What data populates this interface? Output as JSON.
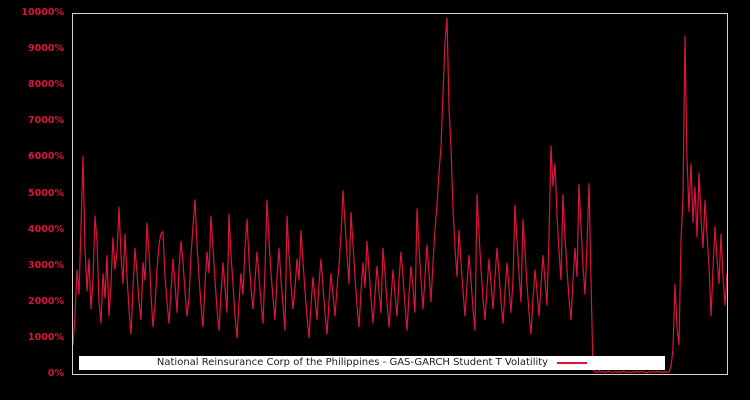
{
  "chart_data": {
    "type": "line",
    "title": "",
    "xlabel": "",
    "ylabel": "",
    "legend_label": "National Reinsurance Corp of the Philippines - GAS-GARCH Student T Volatility",
    "legend_position": "lower center",
    "grid": false,
    "ylim": [
      0,
      10000
    ],
    "ytick_values": [
      0,
      1000,
      2000,
      3000,
      4000,
      5000,
      6000,
      7000,
      8000,
      9000,
      10000
    ],
    "yticks": [
      "0%",
      "1000%",
      "2000%",
      "3000%",
      "4000%",
      "5000%",
      "6000%",
      "7000%",
      "8000%",
      "9000%",
      "10000%"
    ],
    "xticks": [],
    "colors": {
      "background": "#000000",
      "line": "#dc143c",
      "axis_border": "#d4d4d4",
      "tick_label": "#dc143c",
      "legend_background": "#ffffff",
      "legend_text": "#1a1a1a"
    },
    "series": [
      {
        "name": "National Reinsurance Corp of the Philippines - GAS-GARCH Student T Volatility",
        "unit": "percent",
        "values": [
          800,
          1600,
          2900,
          2200,
          4100,
          6050,
          3500,
          2300,
          3200,
          1800,
          2600,
          4400,
          3700,
          2000,
          1400,
          2800,
          2100,
          3300,
          1600,
          2500,
          3800,
          2900,
          3400,
          4650,
          3300,
          2500,
          3900,
          2700,
          1800,
          1100,
          2400,
          3500,
          2800,
          2000,
          1500,
          3100,
          2600,
          4200,
          3400,
          2200,
          1300,
          1900,
          2900,
          3600,
          3900,
          3950,
          2700,
          2000,
          1400,
          2300,
          3200,
          2500,
          1700,
          2900,
          3700,
          3100,
          2300,
          1600,
          2100,
          3300,
          4100,
          4850,
          3600,
          2700,
          1900,
          1300,
          2500,
          3400,
          2800,
          4400,
          3500,
          2600,
          1800,
          1200,
          2200,
          3100,
          2400,
          1700,
          4450,
          3300,
          2500,
          1600,
          1000,
          2000,
          2800,
          2200,
          3500,
          4300,
          3200,
          2400,
          1800,
          2600,
          3400,
          2700,
          2000,
          1400,
          2900,
          4830,
          3700,
          2800,
          2100,
          1500,
          2700,
          3500,
          2600,
          1900,
          1200,
          4400,
          3300,
          2500,
          1800,
          2400,
          3200,
          2600,
          4000,
          3100,
          2300,
          1600,
          1000,
          1900,
          2700,
          2100,
          1500,
          2500,
          3200,
          2400,
          1700,
          1100,
          2000,
          2800,
          2200,
          1600,
          2400,
          3000,
          3900,
          5100,
          4200,
          3300,
          2500,
          4500,
          3600,
          2700,
          1900,
          1300,
          2300,
          3100,
          2400,
          3700,
          2900,
          2100,
          1400,
          2200,
          3000,
          2300,
          1700,
          3500,
          2800,
          2000,
          1300,
          2100,
          2900,
          2200,
          1600,
          2600,
          3400,
          2700,
          1900,
          1200,
          2200,
          3000,
          2400,
          1700,
          4600,
          3500,
          2600,
          1800,
          2700,
          3600,
          2800,
          2000,
          3100,
          4000,
          4700,
          5600,
          6300,
          7800,
          9200,
          9900,
          7400,
          6300,
          4600,
          3500,
          2700,
          4000,
          3100,
          2300,
          1600,
          2500,
          3300,
          2600,
          1800,
          1200,
          5000,
          3900,
          2900,
          2100,
          1500,
          2400,
          3200,
          2500,
          1800,
          2700,
          3500,
          2800,
          2000,
          1400,
          2300,
          3100,
          2400,
          1700,
          2600,
          4700,
          3700,
          2800,
          2000,
          4300,
          3400,
          2500,
          1700,
          1100,
          2100,
          2900,
          2300,
          1600,
          2500,
          3300,
          2600,
          1900,
          3800,
          6350,
          5200,
          5850,
          4400,
          3400,
          2600,
          5000,
          3800,
          2900,
          2100,
          1500,
          2600,
          3500,
          2700,
          5280,
          4100,
          3000,
          2200,
          3600,
          5300,
          2600,
          120,
          60,
          40,
          90,
          50,
          70,
          40,
          60,
          80,
          50,
          40,
          70,
          50,
          60,
          40,
          80,
          60,
          50,
          70,
          40,
          60,
          50,
          80,
          40,
          60,
          70,
          50,
          40,
          60,
          50,
          70,
          40,
          80,
          50,
          60,
          40,
          70,
          50,
          60,
          200,
          700,
          2500,
          1300,
          800,
          3700,
          4900,
          9400,
          6000,
          4500,
          5850,
          4200,
          5200,
          3800,
          5600,
          4300,
          3500,
          4830,
          3900,
          3000,
          1600,
          2900,
          4100,
          3200,
          2500,
          3900,
          2700,
          1900,
          2800
        ]
      }
    ]
  }
}
